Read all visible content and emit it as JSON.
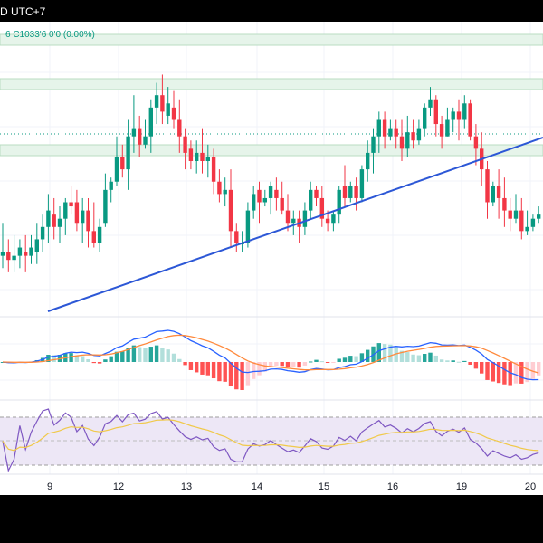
{
  "header": {
    "symbol_tz": "D UTC+7"
  },
  "legend": {
    "text": "6  C1033'6  0'0 (0.00%)"
  },
  "colors": {
    "up": "#089981",
    "down": "#f23645",
    "trendline": "#2c57d6",
    "zone_fill": "#e6f4ea",
    "zone_stroke": "#b9dcc1",
    "macd": "#2962ff",
    "signal": "#ff8a3d",
    "rsi": "#7e57c2",
    "rsi_ma": "#f0c94a",
    "hist_up_strong": "#26a69a",
    "hist_up_weak": "#b2dfdb",
    "hist_dn_strong": "#ff5252",
    "hist_dn_weak": "#ffcdd2"
  },
  "chart_data": {
    "type": "candlestick",
    "x_ticks": [
      "9",
      "12",
      "13",
      "14",
      "15",
      "16",
      "19",
      "20"
    ],
    "candles": [
      [
        0,
        317,
        318,
        325,
        314
      ],
      [
        1,
        318,
        316,
        321,
        313
      ],
      [
        2,
        316,
        317,
        322,
        313
      ],
      [
        3,
        317,
        319,
        321,
        314
      ],
      [
        4,
        318,
        317,
        322,
        313
      ],
      [
        5,
        317,
        319,
        322,
        315
      ],
      [
        6,
        318,
        321,
        325,
        315
      ],
      [
        7,
        321,
        324,
        327,
        318
      ],
      [
        8,
        324,
        328,
        332,
        320
      ],
      [
        9,
        327,
        324,
        331,
        321
      ],
      [
        10,
        324,
        326,
        329,
        320
      ],
      [
        11,
        326,
        330,
        331,
        322
      ],
      [
        12,
        330,
        329,
        334,
        327
      ],
      [
        13,
        330,
        325,
        333,
        323
      ],
      [
        14,
        325,
        328,
        331,
        320
      ],
      [
        15,
        328,
        323,
        331,
        319
      ],
      [
        16,
        323,
        320,
        330,
        319
      ],
      [
        17,
        320,
        324,
        326,
        318
      ],
      [
        18,
        325,
        333,
        337,
        324
      ],
      [
        19,
        333,
        335,
        336,
        330
      ],
      [
        20,
        335,
        341,
        346,
        334
      ],
      [
        21,
        341,
        338,
        344,
        336
      ],
      [
        22,
        338,
        346,
        350,
        333
      ],
      [
        23,
        346,
        348,
        356,
        342
      ],
      [
        24,
        348,
        344,
        351,
        341
      ],
      [
        25,
        344,
        346,
        350,
        343
      ],
      [
        26,
        346,
        353,
        355,
        342
      ],
      [
        27,
        353,
        356,
        359,
        349
      ],
      [
        28,
        356,
        352,
        361,
        349
      ],
      [
        29,
        351,
        354,
        358,
        349
      ],
      [
        30,
        353,
        350,
        357,
        348
      ],
      [
        31,
        350,
        346,
        355,
        342
      ],
      [
        32,
        346,
        342,
        348,
        338
      ],
      [
        33,
        343,
        340,
        345,
        338
      ],
      [
        34,
        340,
        342,
        345,
        337
      ],
      [
        35,
        342,
        340,
        348,
        337
      ],
      [
        36,
        340,
        341,
        344,
        336
      ],
      [
        37,
        341,
        335,
        343,
        332
      ],
      [
        38,
        335,
        332,
        338,
        330
      ],
      [
        39,
        332,
        333,
        336,
        329
      ],
      [
        40,
        333,
        323,
        338,
        319
      ],
      [
        41,
        323,
        320,
        325,
        318
      ],
      [
        42,
        320,
        320,
        323,
        318
      ],
      [
        43,
        320,
        328,
        330,
        319
      ],
      [
        44,
        328,
        332,
        334,
        326
      ],
      [
        45,
        333,
        330,
        335,
        325
      ],
      [
        46,
        330,
        331,
        333,
        329
      ],
      [
        47,
        331,
        334,
        335,
        327
      ],
      [
        48,
        333,
        331,
        336,
        328
      ],
      [
        49,
        331,
        328,
        335,
        327
      ],
      [
        50,
        328,
        325,
        332,
        323
      ],
      [
        51,
        325,
        326,
        328,
        322
      ],
      [
        52,
        326,
        324,
        328,
        320
      ],
      [
        53,
        324,
        328,
        330,
        322
      ],
      [
        54,
        328,
        333,
        335,
        326
      ],
      [
        55,
        333,
        331,
        334,
        329
      ],
      [
        56,
        331,
        326,
        334,
        324
      ],
      [
        57,
        326,
        325,
        328,
        323
      ],
      [
        58,
        325,
        327,
        328,
        323
      ],
      [
        59,
        327,
        333,
        334,
        325
      ],
      [
        60,
        334,
        331,
        339,
        329
      ],
      [
        61,
        331,
        334,
        335,
        330
      ],
      [
        62,
        334,
        331,
        336,
        328
      ],
      [
        63,
        331,
        338,
        339,
        330
      ],
      [
        64,
        338,
        342,
        345,
        335
      ],
      [
        65,
        342,
        346,
        348,
        337
      ],
      [
        66,
        346,
        350,
        352,
        342
      ],
      [
        67,
        350,
        346,
        352,
        343
      ],
      [
        68,
        346,
        348,
        350,
        345
      ],
      [
        69,
        348,
        346,
        350,
        343
      ],
      [
        70,
        346,
        343,
        350,
        340
      ],
      [
        71,
        343,
        347,
        351,
        341
      ],
      [
        72,
        347,
        345,
        350,
        343
      ],
      [
        73,
        345,
        348,
        350,
        344
      ],
      [
        74,
        348,
        353,
        354,
        346
      ],
      [
        75,
        353,
        355,
        358,
        351
      ],
      [
        76,
        355,
        349,
        356,
        346
      ],
      [
        77,
        349,
        346,
        351,
        343
      ],
      [
        78,
        346,
        350,
        353,
        346
      ],
      [
        79,
        350,
        352,
        353,
        347
      ],
      [
        80,
        352,
        350,
        355,
        345
      ],
      [
        81,
        350,
        354,
        356,
        348
      ],
      [
        82,
        354,
        346,
        355,
        345
      ],
      [
        83,
        346,
        343,
        349,
        339
      ],
      [
        84,
        343,
        338,
        347,
        334
      ],
      [
        85,
        338,
        330,
        340,
        326
      ],
      [
        86,
        330,
        334,
        335,
        329
      ],
      [
        87,
        334,
        331,
        338,
        326
      ],
      [
        88,
        331,
        328,
        336,
        324
      ],
      [
        89,
        328,
        326,
        331,
        323
      ],
      [
        90,
        326,
        328,
        332,
        325
      ],
      [
        91,
        328,
        323,
        331,
        321
      ],
      [
        92,
        323,
        324,
        328,
        322
      ],
      [
        93,
        324,
        326,
        327,
        323
      ],
      [
        94,
        326,
        327,
        329,
        325
      ]
    ]
  }
}
